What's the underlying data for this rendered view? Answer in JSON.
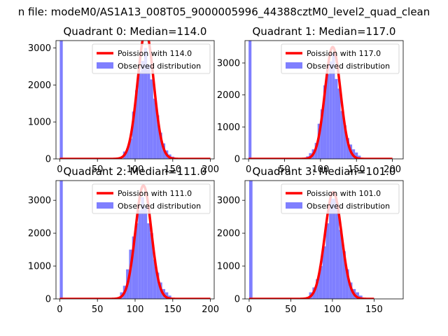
{
  "suptitle": "n file: modeM0/AS1A13_008T05_9000005996_44388cztM0_level2_quad_clean",
  "chart_data": [
    {
      "type": "bar",
      "title": "Quadrant 0: Median=114.0",
      "xlim": [
        -5,
        205
      ],
      "ylim": [
        0,
        3200
      ],
      "xticks": [
        0,
        50,
        100,
        150,
        200
      ],
      "yticks": [
        0,
        1000,
        2000,
        3000
      ],
      "x_tick_labels": [
        "0",
        "50",
        "100",
        "150",
        "200"
      ],
      "y_tick_labels": [
        "0",
        "1000",
        "2000",
        "3000"
      ],
      "legend_position": "upper right",
      "series": [
        {
          "name": "Poission with 114.0",
          "kind": "line",
          "color": "#ff0000",
          "mean": 114.0,
          "peak": 3450,
          "sigma": 10.7
        },
        {
          "name": "Observed distribution",
          "kind": "histogram",
          "color": "#7f7fff",
          "x": [
            0,
            84,
            88,
            92,
            96,
            100,
            104,
            108,
            112,
            116,
            120,
            124,
            128,
            132,
            136,
            140,
            144,
            148
          ],
          "values": [
            3200,
            200,
            280,
            550,
            1280,
            1860,
            2360,
            2650,
            3000,
            2550,
            2150,
            1630,
            1180,
            710,
            420,
            230,
            120,
            60
          ]
        }
      ]
    },
    {
      "type": "bar",
      "title": "Quadrant 1: Median=117.0",
      "xlim": [
        -5,
        215
      ],
      "ylim": [
        0,
        3700
      ],
      "xticks": [
        0,
        50,
        100,
        150,
        200
      ],
      "yticks": [
        0,
        1000,
        2000,
        3000
      ],
      "x_tick_labels": [
        "0",
        "50",
        "100",
        "150",
        "200"
      ],
      "y_tick_labels": [
        "0",
        "1000",
        "2000",
        "3000"
      ],
      "legend_position": "upper right",
      "series": [
        {
          "name": "Poission with 117.0",
          "kind": "line",
          "color": "#ff0000",
          "mean": 117.0,
          "peak": 3500,
          "sigma": 10.8
        },
        {
          "name": "Observed distribution",
          "kind": "histogram",
          "color": "#7f7fff",
          "x": [
            0,
            80,
            84,
            88,
            92,
            96,
            100,
            104,
            108,
            112,
            116,
            120,
            124,
            128,
            132,
            136,
            140,
            144,
            148,
            152
          ],
          "values": [
            3700,
            80,
            180,
            300,
            500,
            1100,
            1550,
            2300,
            2650,
            3050,
            3300,
            2500,
            2200,
            1500,
            1050,
            650,
            450,
            300,
            200,
            100
          ]
        }
      ]
    },
    {
      "type": "bar",
      "title": "Quadrant 2: Median=111.0",
      "xlim": [
        -5,
        205
      ],
      "ylim": [
        0,
        3600
      ],
      "xticks": [
        0,
        50,
        100,
        150,
        200
      ],
      "yticks": [
        0,
        1000,
        2000,
        3000
      ],
      "x_tick_labels": [
        "0",
        "50",
        "100",
        "150",
        "200"
      ],
      "y_tick_labels": [
        "0",
        "1000",
        "2000",
        "3000"
      ],
      "legend_position": "upper right",
      "series": [
        {
          "name": "Poission with 111.0",
          "kind": "line",
          "color": "#ff0000",
          "mean": 111.0,
          "peak": 3450,
          "sigma": 10.5
        },
        {
          "name": "Observed distribution",
          "kind": "histogram",
          "color": "#7f7fff",
          "x": [
            0,
            80,
            84,
            88,
            92,
            96,
            100,
            104,
            108,
            112,
            116,
            120,
            124,
            128,
            132,
            136,
            140,
            144
          ],
          "values": [
            3600,
            200,
            400,
            900,
            1500,
            1900,
            2300,
            2700,
            3100,
            2800,
            2300,
            2000,
            1200,
            800,
            500,
            300,
            200,
            100
          ]
        }
      ]
    },
    {
      "type": "bar",
      "title": "Quadrant 3: Median=101.0",
      "xlim": [
        -5,
        185
      ],
      "ylim": [
        0,
        3600
      ],
      "xticks": [
        0,
        50,
        100,
        150
      ],
      "yticks": [
        0,
        1000,
        2000,
        3000
      ],
      "x_tick_labels": [
        "0",
        "50",
        "100",
        "150"
      ],
      "y_tick_labels": [
        "0",
        "1000",
        "2000",
        "3000"
      ],
      "legend_position": "upper right",
      "series": [
        {
          "name": "Poission with 101.0",
          "kind": "line",
          "color": "#ff0000",
          "mean": 101.0,
          "peak": 3250,
          "sigma": 10.0
        },
        {
          "name": "Observed distribution",
          "kind": "histogram",
          "color": "#7f7fff",
          "x": [
            0,
            72,
            76,
            80,
            84,
            88,
            92,
            96,
            100,
            104,
            108,
            112,
            116,
            120,
            124,
            128,
            132
          ],
          "values": [
            3600,
            200,
            350,
            600,
            1000,
            1600,
            2300,
            3050,
            3050,
            2900,
            2100,
            1450,
            900,
            500,
            300,
            200,
            100
          ]
        }
      ]
    }
  ]
}
